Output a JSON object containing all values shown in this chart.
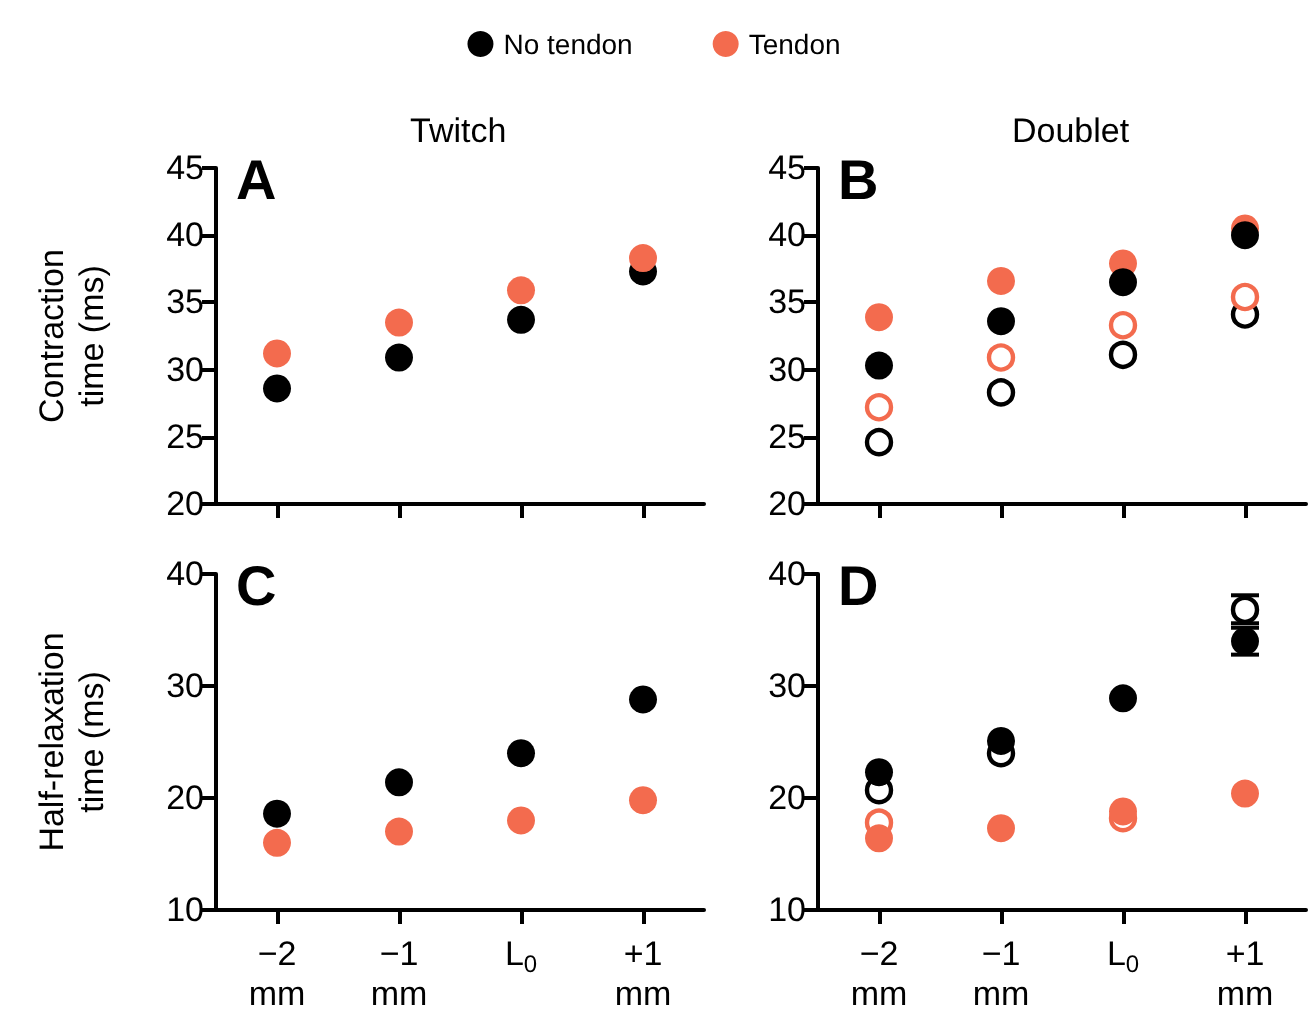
{
  "chart_data": [
    {
      "type": "scatter",
      "title": "Twitch",
      "ylabel": "Contraction\ntime (ms)",
      "annotations": [
        "A"
      ],
      "categories": [
        null,
        null,
        null,
        null
      ],
      "ylim": [
        20,
        45
      ],
      "yticks": [
        20,
        25,
        30,
        35,
        40,
        45
      ],
      "tick_labels": "y",
      "legend": "top",
      "marker": "circle",
      "series": [
        {
          "name": "No tendon",
          "color": "#000000",
          "values": [
            28.6,
            30.9,
            33.7,
            37.3
          ]
        },
        {
          "name": "Tendon",
          "color": "#f36b4e",
          "values": [
            31.2,
            33.5,
            35.9,
            38.3
          ]
        }
      ]
    },
    {
      "type": "scatter",
      "title": "Doublet",
      "annotations": [
        "B"
      ],
      "categories": [
        null,
        null,
        null,
        null
      ],
      "ylim": [
        20,
        45
      ],
      "yticks": [
        20,
        25,
        30,
        35,
        40,
        45
      ],
      "tick_labels": "y",
      "marker": "circle",
      "series": [
        {
          "color": "#f36b4e",
          "values": [
            33.9,
            36.6,
            37.9,
            40.5
          ]
        },
        {
          "color": "#000000",
          "values": [
            30.3,
            33.6,
            36.5,
            40.0
          ]
        },
        {
          "color": "#000000",
          "marker": "open circle",
          "values": [
            24.6,
            28.3,
            31.1,
            34.1
          ]
        },
        {
          "color": "#f36b4e",
          "marker": "open circle",
          "values": [
            27.2,
            30.9,
            33.3,
            35.4
          ]
        }
      ]
    },
    {
      "type": "scatter",
      "ylabel": "Half-relaxation\ntime (ms)",
      "annotations": [
        "C"
      ],
      "categories": [
        "−2\nmm",
        "−1\nmm",
        "L$_{0}$",
        "+1\nmm"
      ],
      "ylim": [
        10,
        40
      ],
      "yticks": [
        10,
        20,
        30,
        40
      ],
      "marker": "circle",
      "series": [
        {
          "color": "#000000",
          "values": [
            18.6,
            21.4,
            24.0,
            28.8
          ]
        },
        {
          "color": "#f36b4e",
          "values": [
            16.0,
            17.0,
            18.0,
            19.8
          ]
        }
      ]
    },
    {
      "type": "scatter",
      "annotations": [
        "D"
      ],
      "categories": [
        "−2\nmm",
        "−1\nmm",
        "L$_{0}$",
        "+1\nmm"
      ],
      "ylim": [
        10,
        40
      ],
      "yticks": [
        10,
        20,
        30,
        40
      ],
      "marker": "circle",
      "series": [
        {
          "color": "#000000",
          "values": [
            22.3,
            25.1,
            28.9,
            34.0
          ],
          "errors": [
            null,
            null,
            null,
            [
              32.8,
              35.2
            ]
          ]
        },
        {
          "color": "#f36b4e",
          "values": [
            16.4,
            17.3,
            18.8,
            20.4
          ]
        },
        {
          "color": "#000000",
          "marker": "open circle",
          "values": [
            20.7,
            24.0,
            null,
            36.8
          ],
          "errors": [
            null,
            null,
            null,
            [
              35.6,
              38.1
            ]
          ]
        },
        {
          "color": "#f36b4e",
          "marker": "open circle",
          "values": [
            17.8,
            null,
            18.2,
            null
          ]
        }
      ]
    }
  ]
}
